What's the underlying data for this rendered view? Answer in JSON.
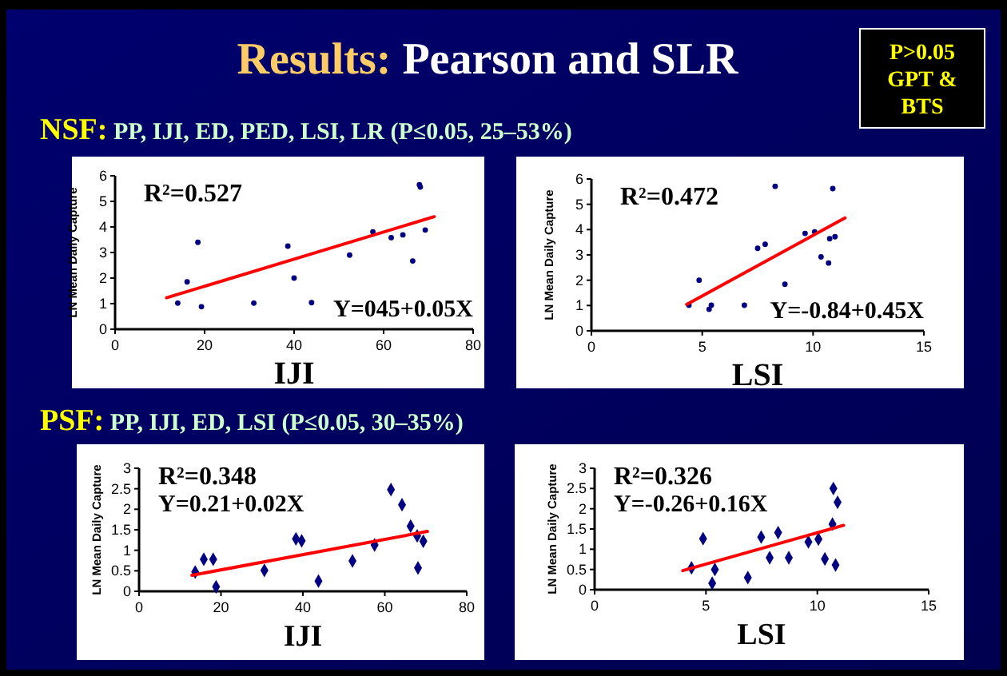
{
  "chart_data": [
    {
      "type": "other",
      "title": "Results: Pearson and SLR",
      "annotations": [
        "P>0.05 GPT & BTS",
        "NSF: PP, IJI, ED, PED, LSI, LR (P≤0.05, 25–53%)",
        "PSF: PP, IJI, ED, LSI (P≤0.05, 30–35%)"
      ]
    },
    {
      "type": "scatter",
      "xlabel": "IJI",
      "ylabel": "LN Mean Daily Capture",
      "xlim": [
        0,
        80
      ],
      "xticks": [
        0,
        20,
        40,
        60,
        80
      ],
      "ylim": [
        0,
        6
      ],
      "yticks": [
        0,
        1,
        2,
        3,
        4,
        5,
        6
      ],
      "annotations": [
        "R²=0.527",
        "Y=045+0.05X"
      ],
      "series": [
        {
          "type": "scatter",
          "marker": "circle",
          "color": "#000080",
          "x": [
            14.0,
            16.1,
            18.5,
            19.3,
            31.0,
            38.6,
            40.0,
            43.9,
            52.4,
            57.6,
            61.7,
            64.3,
            66.5,
            68.0,
            68.2,
            69.3
          ],
          "values": [
            1.02,
            1.85,
            3.4,
            0.88,
            1.02,
            3.25,
            2.0,
            1.04,
            2.9,
            3.81,
            3.58,
            3.69,
            2.67,
            5.65,
            5.56,
            3.88
          ]
        },
        {
          "type": "line",
          "color": "#ff0000",
          "x": [
            11.5,
            71.3
          ],
          "values": [
            1.23,
            4.4
          ]
        }
      ]
    },
    {
      "type": "scatter",
      "xlabel": "LSI",
      "ylabel": "LN Mean Daily Capture",
      "xlim": [
        0,
        15
      ],
      "xticks": [
        0,
        5,
        10,
        15
      ],
      "ylim": [
        0,
        6
      ],
      "yticks": [
        0,
        1,
        2,
        3,
        4,
        5,
        6
      ],
      "annotations": [
        "R²=0.472",
        "Y=-0.84+0.45X"
      ],
      "series": [
        {
          "type": "scatter",
          "marker": "circle",
          "color": "#000080",
          "x": [
            4.4,
            4.86,
            5.31,
            5.41,
            6.9,
            7.5,
            7.84,
            8.29,
            8.73,
            9.64,
            10.07,
            10.36,
            10.7,
            10.75,
            10.89,
            10.99
          ],
          "values": [
            1.01,
            2.0,
            0.85,
            1.01,
            1.01,
            3.26,
            3.42,
            5.71,
            1.84,
            3.85,
            3.91,
            2.92,
            2.68,
            3.64,
            5.62,
            3.72
          ]
        },
        {
          "type": "line",
          "color": "#ff0000",
          "x": [
            4.3,
            11.44
          ],
          "values": [
            1.04,
            4.46
          ]
        }
      ]
    },
    {
      "type": "scatter",
      "xlabel": "IJI",
      "ylabel": "LN Mean Daily Capture",
      "xlim": [
        0,
        80
      ],
      "xticks": [
        0,
        20,
        40,
        60,
        80
      ],
      "ylim": [
        0,
        3
      ],
      "yticks": [
        0,
        0.5,
        1,
        1.5,
        2,
        2.5,
        3
      ],
      "annotations": [
        "R²=0.348",
        "Y=0.21+0.02X"
      ],
      "series": [
        {
          "type": "scatter",
          "marker": "diamond",
          "color": "#000080",
          "x": [
            13.7,
            15.8,
            18.1,
            18.8,
            30.6,
            38.3,
            39.7,
            43.8,
            52.1,
            57.5,
            61.5,
            64.2,
            66.3,
            67.9,
            68.1,
            69.4
          ],
          "values": [
            0.47,
            0.78,
            0.78,
            0.11,
            0.51,
            1.28,
            1.23,
            0.25,
            0.74,
            1.13,
            2.48,
            2.11,
            1.59,
            1.35,
            0.57,
            1.22
          ]
        },
        {
          "type": "line",
          "color": "#ff0000",
          "x": [
            12.9,
            70.4
          ],
          "values": [
            0.39,
            1.46
          ]
        }
      ]
    },
    {
      "type": "scatter",
      "xlabel": "LSI",
      "ylabel": "LN Mean Daily Capture",
      "xlim": [
        0,
        15
      ],
      "xticks": [
        0,
        5,
        10,
        15
      ],
      "ylim": [
        0,
        3
      ],
      "yticks": [
        0,
        0.5,
        1,
        1.5,
        2,
        2.5,
        3
      ],
      "annotations": [
        "R²=0.326",
        "Y=-0.26+0.16X"
      ],
      "series": [
        {
          "type": "scatter",
          "marker": "diamond",
          "color": "#000080",
          "x": [
            4.35,
            4.87,
            5.28,
            5.4,
            6.88,
            7.48,
            7.86,
            8.24,
            8.72,
            9.6,
            10.05,
            10.34,
            10.68,
            10.72,
            10.82,
            10.91
          ],
          "values": [
            0.54,
            1.26,
            0.16,
            0.5,
            0.3,
            1.3,
            0.79,
            1.41,
            0.79,
            1.18,
            1.25,
            0.76,
            1.62,
            2.5,
            0.61,
            2.16
          ]
        },
        {
          "type": "line",
          "color": "#ff0000",
          "x": [
            3.96,
            11.18
          ],
          "values": [
            0.47,
            1.59
          ]
        }
      ]
    }
  ]
}
